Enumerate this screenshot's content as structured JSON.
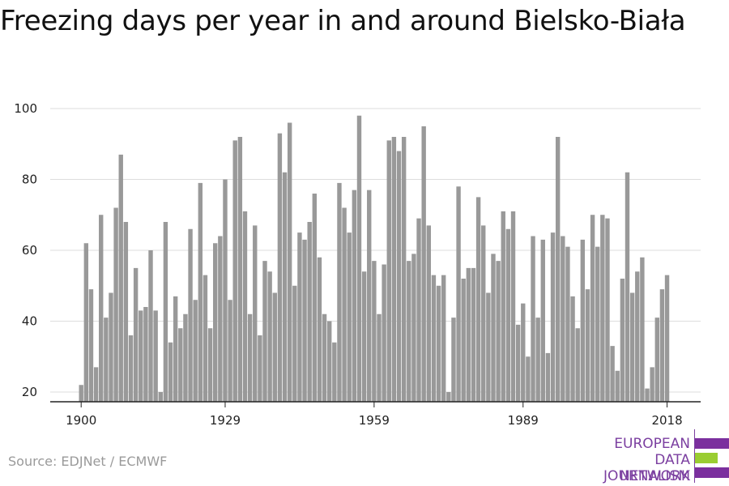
{
  "title": "Freezing days per year in and around Bielsko-Biała",
  "source": "Source: EDJNet / ECMWF",
  "logo": {
    "lines": [
      "EUROPEAN",
      "DATA JOURNALISM",
      "NETWORK"
    ],
    "colors": {
      "purple": "#7b2f9e",
      "green": "#9acd32"
    }
  },
  "colors": {
    "bar": "#999999",
    "grid": "#dddddd",
    "axis": "#222222"
  },
  "chart_data": {
    "type": "bar",
    "title": "Freezing days per year in and around Bielsko-Biała",
    "xlabel": "",
    "ylabel": "",
    "x_start": 1900,
    "x_ticks": [
      1900,
      1929,
      1959,
      1989,
      2018
    ],
    "y_ticks": [
      20,
      40,
      60,
      80,
      100
    ],
    "ylim": [
      17,
      100
    ],
    "grid": true,
    "values": [
      22,
      62,
      49,
      27,
      70,
      41,
      48,
      72,
      87,
      68,
      36,
      55,
      43,
      44,
      60,
      43,
      20,
      68,
      34,
      47,
      38,
      42,
      66,
      46,
      79,
      53,
      38,
      62,
      64,
      80,
      46,
      91,
      92,
      71,
      42,
      67,
      36,
      57,
      54,
      48,
      93,
      82,
      96,
      50,
      65,
      63,
      68,
      76,
      58,
      42,
      40,
      34,
      79,
      72,
      65,
      77,
      98,
      54,
      77,
      57,
      42,
      56,
      91,
      92,
      88,
      92,
      57,
      59,
      69,
      95,
      67,
      53,
      50,
      53,
      20,
      41,
      78,
      52,
      55,
      55,
      75,
      67,
      48,
      59,
      57,
      71,
      66,
      71,
      39,
      45,
      30,
      64,
      41,
      63,
      31,
      65,
      92,
      64,
      61,
      47,
      38,
      63,
      49,
      70,
      61,
      70,
      69,
      33,
      26,
      52,
      82,
      48,
      54,
      58,
      21,
      27,
      41,
      49,
      53
    ]
  }
}
